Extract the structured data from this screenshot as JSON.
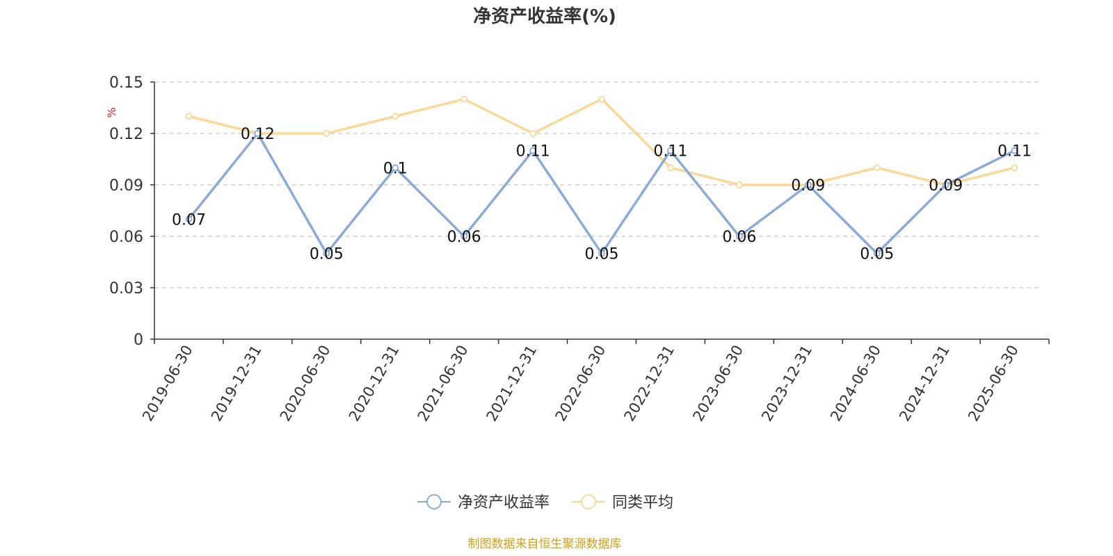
{
  "chart_data": {
    "type": "line",
    "title": "净资产收益率(%)",
    "ylabel": "%",
    "xlabel": "",
    "ylim": [
      0,
      0.15
    ],
    "yticks": [
      "0",
      "0.03",
      "0.06",
      "0.09",
      "0.12",
      "0.15"
    ],
    "grid": true,
    "legend_position": "bottom",
    "categories": [
      "2019-06-30",
      "2019-12-31",
      "2020-06-30",
      "2020-12-31",
      "2021-06-30",
      "2021-12-31",
      "2022-06-30",
      "2022-12-31",
      "2023-06-30",
      "2023-12-31",
      "2024-06-30",
      "2024-12-31",
      "2025-06-30"
    ],
    "series": [
      {
        "name": "净资产收益率",
        "color": "#8aaad8",
        "values": [
          0.07,
          0.12,
          0.05,
          0.1,
          0.06,
          0.11,
          0.05,
          0.11,
          0.06,
          0.09,
          0.05,
          0.09,
          0.11
        ],
        "labels": [
          "0.07",
          "0.12",
          "0.05",
          "0.1",
          "0.06",
          "0.11",
          "0.05",
          "0.11",
          "0.06",
          "0.09",
          "0.05",
          "0.09",
          "0.11"
        ]
      },
      {
        "name": "同类平均",
        "color": "#fbd897",
        "values": [
          0.13,
          0.12,
          0.12,
          0.13,
          0.14,
          0.12,
          0.14,
          0.1,
          0.09,
          0.09,
          0.1,
          0.09,
          0.1
        ]
      }
    ],
    "unit_color": "#e02020"
  },
  "source": {
    "text": "制图数据来自恒生聚源数据库",
    "color": "#d4a017"
  }
}
